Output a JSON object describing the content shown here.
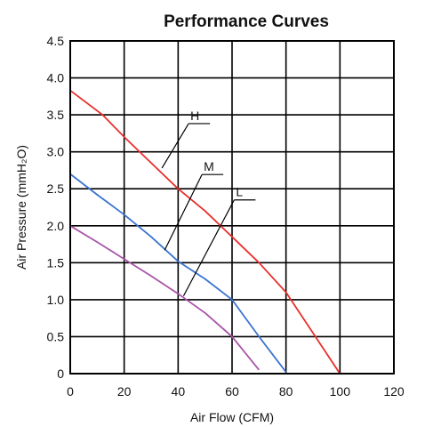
{
  "chart_data": {
    "type": "line",
    "title": "Performance Curves",
    "xlabel": "Air Flow (CFM)",
    "ylabel": "Air Pressure (mmH₂O)",
    "xlim": [
      0,
      120
    ],
    "ylim": [
      0,
      4.5
    ],
    "xticks": [
      "0",
      "20",
      "40",
      "60",
      "80",
      "100",
      "120"
    ],
    "yticks": [
      "0",
      "0.5",
      "1.0",
      "1.5",
      "2.0",
      "2.5",
      "3.0",
      "3.5",
      "4.0",
      "4.5"
    ],
    "grid": true,
    "series": [
      {
        "name": "H",
        "color": "#e8302c",
        "x": [
          0,
          12,
          20,
          30,
          40,
          50,
          60,
          70,
          80,
          90,
          100
        ],
        "y": [
          3.83,
          3.5,
          3.2,
          2.85,
          2.5,
          2.2,
          1.85,
          1.5,
          1.1,
          0.55,
          0
        ],
        "label_point": [
          34,
          2.78
        ]
      },
      {
        "name": "M",
        "color": "#3b74d0",
        "x": [
          0,
          10,
          20,
          30,
          40,
          50,
          60,
          70,
          80
        ],
        "y": [
          2.7,
          2.42,
          2.15,
          1.85,
          1.52,
          1.28,
          1.0,
          0.5,
          0.02
        ],
        "label_point": [
          35,
          1.67
        ]
      },
      {
        "name": "L",
        "color": "#a855a8",
        "x": [
          0,
          10,
          20,
          30,
          40,
          50,
          60,
          70
        ],
        "y": [
          2.0,
          1.78,
          1.55,
          1.32,
          1.08,
          0.82,
          0.5,
          0.05
        ],
        "label_point": [
          42,
          1.05
        ]
      }
    ]
  }
}
